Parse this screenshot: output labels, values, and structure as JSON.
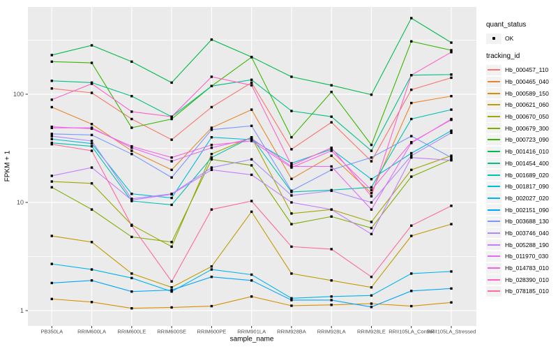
{
  "figure": {
    "background": "#FFFFFF",
    "panel_background": "#EBEBEB",
    "gridline_color": "#FFFFFF",
    "tick_label_color": "#4D4D4D",
    "point_color": "#000000"
  },
  "legend": {
    "quant_status_title": "quant_status",
    "ok_label": "OK",
    "tracking_id_title": "tracking_id"
  },
  "chart_data": {
    "type": "line",
    "title": "",
    "xlabel": "sample_name",
    "ylabel": "FPKM + 1",
    "y_scale": "log10",
    "y_ticks": [
      1,
      10,
      100
    ],
    "y_minor_ticks": [
      3.162,
      31.62,
      316.2
    ],
    "ylim": [
      0.7,
      650
    ],
    "grid": true,
    "legend_position": "right",
    "marker": "point",
    "quant_status": "OK",
    "categories": [
      "PB350LA",
      "RRIM600LA",
      "RRIM600LE",
      "RRIM600SE",
      "RRIM600PE",
      "RRIM901LA",
      "RRIM928BA",
      "RRIM928LA",
      "RRIM928LE",
      "RRII105LA_Control",
      "RRII105LA_Stressed"
    ],
    "series": [
      {
        "name": "Hb_000457_110",
        "color": "#F8766D",
        "values": [
          113,
          103,
          59,
          38,
          76,
          128,
          31,
          55,
          24,
          110,
          142
        ]
      },
      {
        "name": "Hb_000465_040",
        "color": "#E8862D",
        "values": [
          76,
          53,
          30,
          20,
          49,
          72,
          16.5,
          27,
          12.2,
          83,
          96
        ]
      },
      {
        "name": "Hb_000589_150",
        "color": "#D89000",
        "values": [
          1.28,
          1.2,
          1.05,
          1.07,
          1.1,
          1.35,
          1.11,
          1.13,
          1.16,
          1.1,
          1.19
        ]
      },
      {
        "name": "Hb_000621_060",
        "color": "#C09B00",
        "values": [
          4.9,
          4.3,
          2.2,
          1.64,
          2.56,
          8.2,
          2.2,
          1.9,
          1.64,
          4.9,
          6.3
        ]
      },
      {
        "name": "Hb_000670_050",
        "color": "#A3A500",
        "values": [
          15.6,
          15,
          6.2,
          3.9,
          28,
          40,
          7.9,
          8.6,
          6.6,
          20,
          27
        ]
      },
      {
        "name": "Hb_000679_300",
        "color": "#7CAE00",
        "values": [
          13.8,
          8.6,
          4.8,
          4.3,
          25,
          22,
          6.3,
          7.4,
          5.8,
          17.3,
          25
        ]
      },
      {
        "name": "Hb_000723_090",
        "color": "#39B600",
        "values": [
          200,
          195,
          49,
          59,
          119,
          220,
          40,
          105,
          34,
          308,
          255
        ]
      },
      {
        "name": "Hb_001416_010",
        "color": "#00BB4E",
        "values": [
          230,
          283,
          200,
          128,
          320,
          221,
          145,
          121,
          99,
          505,
          300
        ]
      },
      {
        "name": "Hb_001454_400",
        "color": "#00C087",
        "values": [
          133,
          128,
          96,
          62,
          119,
          136,
          70,
          62,
          30,
          150,
          152
        ]
      },
      {
        "name": "Hb_001689_020",
        "color": "#00C0AF",
        "values": [
          35.5,
          33,
          10.3,
          9.5,
          26,
          40,
          12.5,
          13,
          13.8,
          59,
          72
        ]
      },
      {
        "name": "Hb_001817_090",
        "color": "#00BCD8",
        "values": [
          38.5,
          35,
          12,
          11,
          40,
          38,
          23,
          31,
          16.4,
          28.5,
          46
        ]
      },
      {
        "name": "Hb_002027_020",
        "color": "#00B5EE",
        "values": [
          2.7,
          2.4,
          2.0,
          1.5,
          2.4,
          2.15,
          1.3,
          1.35,
          1.38,
          2.2,
          2.3
        ]
      },
      {
        "name": "Hb_002151_090",
        "color": "#00A5FF",
        "values": [
          1.8,
          1.9,
          1.5,
          1.55,
          2.05,
          1.9,
          1.25,
          1.25,
          1.08,
          1.52,
          1.6
        ]
      },
      {
        "name": "Hb_003688_130",
        "color": "#7997FF",
        "values": [
          43,
          42,
          28,
          17,
          47,
          51,
          12.8,
          20,
          26,
          41,
          26
        ]
      },
      {
        "name": "Hb_003746_040",
        "color": "#AC88FF",
        "values": [
          41,
          37,
          10.8,
          12,
          21,
          25,
          11.6,
          12.8,
          10,
          27,
          44
        ]
      },
      {
        "name": "Hb_005288_190",
        "color": "#C77CFF",
        "values": [
          17.6,
          21,
          10.5,
          11.9,
          20,
          18,
          10,
          8.6,
          5.1,
          26,
          24.5
        ]
      },
      {
        "name": "Hb_011970_030",
        "color": "#E36EF6",
        "values": [
          48.8,
          49,
          32,
          24,
          32,
          39,
          21.5,
          21.5,
          8.6,
          35.4,
          59
        ]
      },
      {
        "name": "Hb_014783_010",
        "color": "#F763E0",
        "values": [
          50,
          48,
          33,
          26,
          34,
          37,
          21,
          30,
          13,
          36,
          58
        ]
      },
      {
        "name": "Hb_028390_010",
        "color": "#FF61C7",
        "values": [
          89,
          125,
          69,
          62,
          145,
          121,
          22,
          32,
          11.4,
          150,
          245
        ]
      },
      {
        "name": "Hb_078185_010",
        "color": "#FF68A1",
        "values": [
          34.5,
          30,
          6.1,
          1.86,
          8.6,
          10.3,
          3.9,
          3.7,
          2.05,
          6.1,
          9.3
        ]
      }
    ]
  }
}
